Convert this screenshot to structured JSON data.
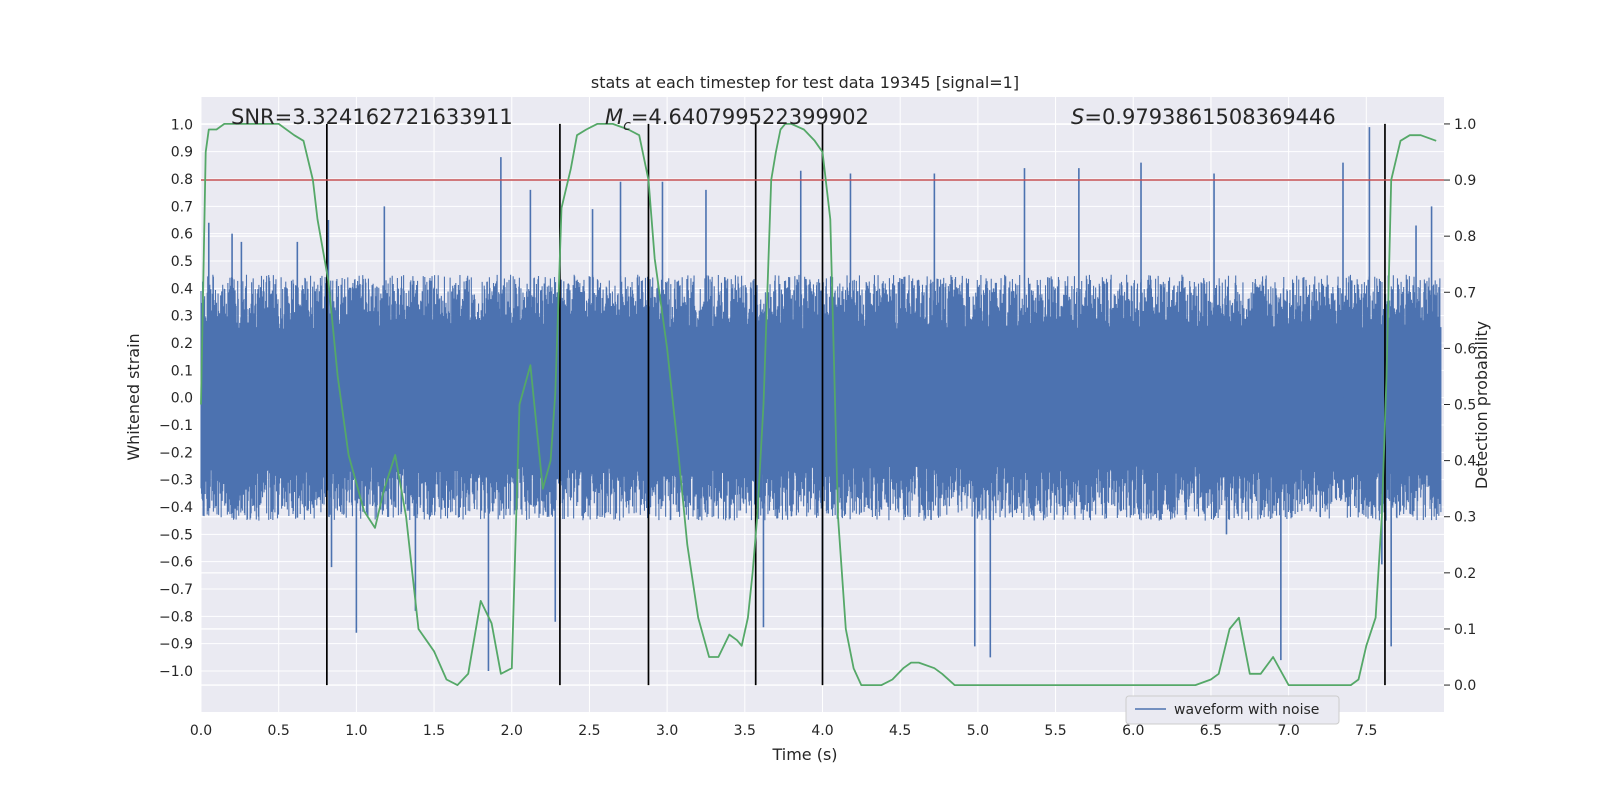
{
  "chart_data": {
    "type": "line",
    "title": "stats at each timestep for test data 19345 [signal=1]",
    "xlabel": "Time (s)",
    "ylabel": "Whitened strain",
    "y2label": "Detection probability",
    "xlim": [
      0.0,
      8.0
    ],
    "ylim": [
      -1.15,
      1.1
    ],
    "y2lim": [
      -0.048,
      1.048
    ],
    "x_ticks": [
      "0.0",
      "0.5",
      "1.0",
      "1.5",
      "2.0",
      "2.5",
      "3.0",
      "3.5",
      "4.0",
      "4.5",
      "5.0",
      "5.5",
      "6.0",
      "6.5",
      "7.0",
      "7.5"
    ],
    "y_ticks": [
      "1.0",
      "0.9",
      "0.8",
      "0.7",
      "0.6",
      "0.5",
      "0.4",
      "0.3",
      "0.2",
      "0.1",
      "0.0",
      "−0.1",
      "−0.2",
      "−0.3",
      "−0.4",
      "−0.5",
      "−0.6",
      "−0.7",
      "−0.8",
      "−0.9",
      "−1.0"
    ],
    "y2_ticks": [
      "1.0",
      "0.9",
      "0.8",
      "0.7",
      "0.6",
      "0.5",
      "0.4",
      "0.3",
      "0.2",
      "0.1",
      "0.0"
    ],
    "grid": true,
    "legend": {
      "entries": [
        "waveform with noise"
      ],
      "placement": "lower-right"
    },
    "annotations": {
      "snr": "SNR=3.324162721633911",
      "mc_symbol": "M",
      "mc_sub": "c",
      "mc_value": "=4.640799522399902",
      "s_symbol": "S",
      "s_value": "=0.9793861508369446"
    },
    "threshold": {
      "value": 0.9,
      "axis": "right",
      "color": "#c44e52"
    },
    "vertical_lines_x": [
      0.81,
      2.31,
      2.88,
      3.57,
      4.0,
      7.62
    ],
    "waveform": {
      "name": "waveform with noise",
      "color": "#4c72b0",
      "x_range": [
        0.0,
        7.98
      ],
      "typical_envelope": [
        -0.45,
        0.45
      ],
      "peak_spikes": [
        [
          0.05,
          0.64
        ],
        [
          0.2,
          0.6
        ],
        [
          0.26,
          0.57
        ],
        [
          0.62,
          0.57
        ],
        [
          0.82,
          0.65
        ],
        [
          0.84,
          -0.62
        ],
        [
          1.0,
          -0.86
        ],
        [
          1.18,
          0.7
        ],
        [
          1.38,
          -0.78
        ],
        [
          1.93,
          0.88
        ],
        [
          1.85,
          -1.0
        ],
        [
          2.12,
          0.76
        ],
        [
          2.28,
          -0.82
        ],
        [
          2.52,
          0.69
        ],
        [
          2.7,
          0.79
        ],
        [
          2.97,
          0.79
        ],
        [
          3.25,
          0.76
        ],
        [
          3.62,
          -0.84
        ],
        [
          3.86,
          0.83
        ],
        [
          4.0,
          -0.84
        ],
        [
          4.18,
          0.82
        ],
        [
          4.72,
          0.82
        ],
        [
          4.98,
          -0.91
        ],
        [
          5.08,
          -0.95
        ],
        [
          5.3,
          0.84
        ],
        [
          5.65,
          0.84
        ],
        [
          6.05,
          0.86
        ],
        [
          6.52,
          0.82
        ],
        [
          6.6,
          -0.5
        ],
        [
          6.95,
          -0.96
        ],
        [
          7.35,
          0.86
        ],
        [
          7.52,
          0.99
        ],
        [
          7.6,
          -0.61
        ],
        [
          7.66,
          -0.91
        ],
        [
          7.82,
          0.63
        ],
        [
          7.92,
          0.7
        ]
      ]
    },
    "detection_probability": {
      "color": "#55a868",
      "x": [
        0.0,
        0.03,
        0.05,
        0.1,
        0.15,
        0.3,
        0.5,
        0.6,
        0.66,
        0.72,
        0.75,
        0.82,
        0.88,
        0.95,
        1.05,
        1.12,
        1.18,
        1.25,
        1.32,
        1.4,
        1.45,
        1.5,
        1.58,
        1.65,
        1.72,
        1.8,
        1.87,
        1.93,
        2.0,
        2.05,
        2.12,
        2.2,
        2.25,
        2.28,
        2.32,
        2.38,
        2.42,
        2.48,
        2.55,
        2.65,
        2.75,
        2.82,
        2.88,
        2.92,
        3.0,
        3.07,
        3.13,
        3.2,
        3.27,
        3.33,
        3.4,
        3.45,
        3.48,
        3.52,
        3.55,
        3.58,
        3.62,
        3.67,
        3.7,
        3.73,
        3.76,
        3.8,
        3.88,
        3.95,
        4.0,
        4.05,
        4.1,
        4.15,
        4.2,
        4.25,
        4.3,
        4.38,
        4.45,
        4.52,
        4.57,
        4.62,
        4.72,
        4.77,
        4.85,
        4.92,
        5.0,
        5.15,
        5.3,
        5.6,
        5.9,
        6.2,
        6.4,
        6.5,
        6.55,
        6.62,
        6.68,
        6.75,
        6.82,
        6.9,
        7.0,
        7.1,
        7.2,
        7.3,
        7.4,
        7.45,
        7.5,
        7.56,
        7.6,
        7.63,
        7.66,
        7.72,
        7.78,
        7.85,
        7.95
      ],
      "y": [
        0.5,
        0.95,
        0.99,
        0.99,
        1.0,
        1.0,
        1.0,
        0.98,
        0.97,
        0.9,
        0.83,
        0.72,
        0.55,
        0.41,
        0.31,
        0.28,
        0.35,
        0.41,
        0.3,
        0.1,
        0.08,
        0.06,
        0.01,
        0.0,
        0.02,
        0.15,
        0.11,
        0.02,
        0.03,
        0.5,
        0.57,
        0.35,
        0.4,
        0.52,
        0.85,
        0.92,
        0.98,
        0.99,
        1.0,
        1.0,
        0.99,
        0.98,
        0.9,
        0.76,
        0.6,
        0.42,
        0.25,
        0.12,
        0.05,
        0.05,
        0.09,
        0.08,
        0.07,
        0.12,
        0.2,
        0.3,
        0.5,
        0.9,
        0.95,
        0.99,
        1.0,
        1.0,
        0.99,
        0.97,
        0.95,
        0.83,
        0.3,
        0.1,
        0.03,
        0.0,
        0.0,
        0.0,
        0.01,
        0.03,
        0.04,
        0.04,
        0.03,
        0.02,
        0.0,
        0.0,
        0.0,
        0.0,
        0.0,
        0.0,
        0.0,
        0.0,
        0.0,
        0.01,
        0.02,
        0.1,
        0.12,
        0.02,
        0.02,
        0.05,
        0.0,
        0.0,
        0.0,
        0.0,
        0.0,
        0.01,
        0.07,
        0.12,
        0.3,
        0.55,
        0.9,
        0.97,
        0.98,
        0.98,
        0.97
      ]
    }
  }
}
